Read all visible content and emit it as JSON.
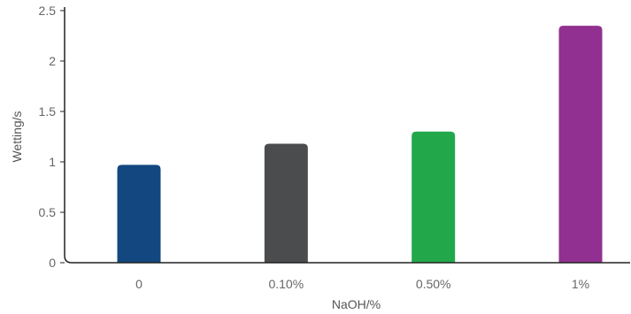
{
  "chart_data": {
    "type": "bar",
    "categories": [
      "0",
      "0.10%",
      "0.50%",
      "1%"
    ],
    "values": [
      0.97,
      1.18,
      1.3,
      2.35
    ],
    "colors": [
      "#13477f",
      "#4b4c4e",
      "#22a84b",
      "#913090"
    ],
    "xlabel": "NaOH/%",
    "ylabel": "Wetting/s",
    "ylim": [
      0,
      2.5
    ],
    "yticks": [
      "0",
      "0.5",
      "1",
      "1.5",
      "2",
      "2.5"
    ],
    "grid": false,
    "legend": "none"
  }
}
